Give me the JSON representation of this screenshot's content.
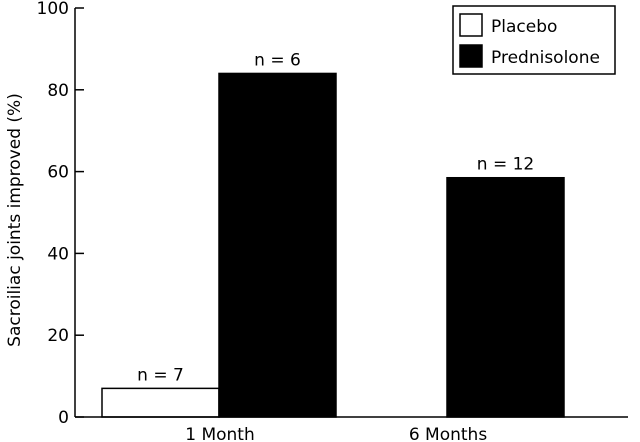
{
  "chart_data": {
    "type": "bar",
    "title": "",
    "xlabel": "",
    "ylabel": "Sacroiliac joints improved (%)",
    "ylim": [
      0,
      100
    ],
    "yticks": [
      0,
      20,
      40,
      60,
      80,
      100
    ],
    "categories": [
      "1 Month",
      "6 Months"
    ],
    "series": [
      {
        "name": "Placebo",
        "color": "#ffffff",
        "values": [
          7,
          null
        ],
        "labels": [
          "n = 7",
          ""
        ]
      },
      {
        "name": "Prednisolone",
        "color": "#000000",
        "values": [
          84,
          58.5
        ],
        "labels": [
          "n = 6",
          "n = 12"
        ]
      }
    ],
    "legend_position": "top-right",
    "grid": false
  }
}
